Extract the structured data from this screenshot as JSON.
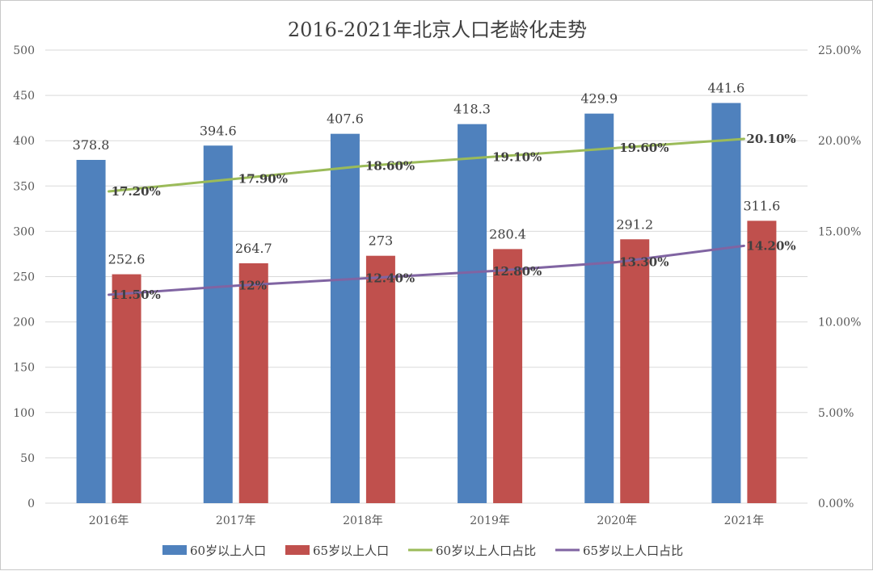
{
  "chart_data": {
    "type": "bar",
    "title": "2016-2021年北京人口老龄化走势",
    "categories": [
      "2016年",
      "2017年",
      "2018年",
      "2019年",
      "2020年",
      "2021年"
    ],
    "y_left": {
      "min": 0,
      "max": 500,
      "ticks": [
        "0",
        "50",
        "100",
        "150",
        "200",
        "250",
        "300",
        "350",
        "400",
        "450",
        "500"
      ]
    },
    "y_right": {
      "min": 0,
      "max": 25,
      "ticks": [
        "0.00%",
        "5.00%",
        "10.00%",
        "15.00%",
        "20.00%",
        "25.00%"
      ]
    },
    "grid": true,
    "legend_position": "bottom",
    "series": [
      {
        "name": "60岁以上人口",
        "kind": "bar",
        "axis": "left",
        "color": "#4f81bd",
        "values": [
          378.8,
          394.6,
          407.6,
          418.3,
          429.9,
          441.6
        ],
        "labels": [
          "378.8",
          "394.6",
          "407.6",
          "418.3",
          "429.9",
          "441.6"
        ]
      },
      {
        "name": "65岁以上人口",
        "kind": "bar",
        "axis": "left",
        "color": "#c0504d",
        "values": [
          252.6,
          264.7,
          273,
          280.4,
          291.2,
          311.6
        ],
        "labels": [
          "252.6",
          "264.7",
          "273",
          "280.4",
          "291.2",
          "311.6"
        ]
      },
      {
        "name": "60岁以上人口占比",
        "kind": "line",
        "axis": "right",
        "color": "#9bbb59",
        "values": [
          17.2,
          17.9,
          18.6,
          19.1,
          19.6,
          20.1
        ],
        "labels": [
          "17.20%",
          "17.90%",
          "18.60%",
          "19.10%",
          "19.60%",
          "20.10%"
        ]
      },
      {
        "name": "65岁以上人口占比",
        "kind": "line",
        "axis": "right",
        "color": "#8064a2",
        "values": [
          11.5,
          12,
          12.4,
          12.8,
          13.3,
          14.2
        ],
        "labels": [
          "11.50%",
          "12%",
          "12.40%",
          "12.80%",
          "13.30%",
          "14.20%"
        ]
      }
    ]
  }
}
